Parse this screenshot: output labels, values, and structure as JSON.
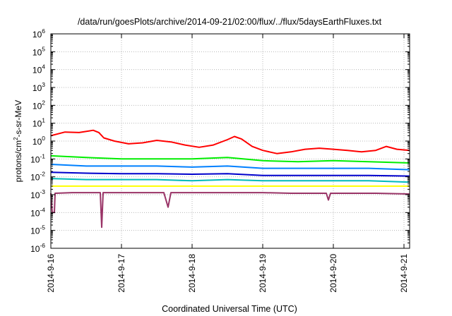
{
  "chart_data": {
    "type": "line",
    "title": "/data/run/goesPlots/archive/2014-09-21/02:00/flux/../flux/5daysEarthFluxes.txt",
    "xlabel": "Coordinated Universal Time (UTC)",
    "ylabel": {
      "pre": "protons/cm",
      "sup": "2",
      "post": "-s-sr-MeV"
    },
    "yscale": "log",
    "ylim": [
      1e-06,
      1000000.0
    ],
    "xlim": [
      "2014-9-16",
      "2014-9-21 02:00"
    ],
    "grid": true,
    "x_ticks": [
      "2014-9-16",
      "2014-9-17",
      "2014-9-18",
      "2014-9-19",
      "2014-9-20",
      "2014-9-21"
    ],
    "y_ticks": [
      {
        "base": "10",
        "exp": "-6"
      },
      {
        "base": "10",
        "exp": "-5"
      },
      {
        "base": "10",
        "exp": "-4"
      },
      {
        "base": "10",
        "exp": "-3"
      },
      {
        "base": "10",
        "exp": "-2"
      },
      {
        "base": "10",
        "exp": "-1"
      },
      {
        "base": "10",
        "exp": "0"
      },
      {
        "base": "10",
        "exp": "1"
      },
      {
        "base": "10",
        "exp": "2"
      },
      {
        "base": "10",
        "exp": "3"
      },
      {
        "base": "10",
        "exp": "4"
      },
      {
        "base": "10",
        "exp": "5"
      },
      {
        "base": "10",
        "exp": "6"
      }
    ],
    "series": [
      {
        "color": "#ff0000",
        "x": [
          0,
          0.2,
          0.4,
          0.6,
          0.68,
          0.75,
          0.9,
          1.1,
          1.3,
          1.5,
          1.7,
          1.9,
          2.1,
          2.3,
          2.5,
          2.6,
          2.7,
          2.85,
          3.0,
          3.2,
          3.4,
          3.6,
          3.8,
          4.0,
          4.2,
          4.4,
          4.6,
          4.75,
          4.9,
          5.08
        ],
        "y": [
          2.0,
          3.2,
          3.0,
          4.0,
          3.0,
          1.5,
          1.0,
          0.7,
          0.8,
          1.1,
          0.9,
          0.6,
          0.45,
          0.6,
          1.2,
          1.8,
          1.3,
          0.5,
          0.3,
          0.2,
          0.25,
          0.35,
          0.4,
          0.35,
          0.3,
          0.25,
          0.3,
          0.5,
          0.35,
          0.3
        ]
      },
      {
        "color": "#00ee00",
        "x": [
          0,
          0.5,
          1.0,
          1.5,
          2.0,
          2.5,
          3.0,
          3.5,
          4.0,
          4.5,
          5.08
        ],
        "y": [
          0.15,
          0.12,
          0.1,
          0.1,
          0.1,
          0.12,
          0.08,
          0.07,
          0.08,
          0.07,
          0.06
        ]
      },
      {
        "color": "#0080ff",
        "x": [
          0,
          0.5,
          1.0,
          1.5,
          2.0,
          2.5,
          3.0,
          3.5,
          4.0,
          4.5,
          5.08
        ],
        "y": [
          0.05,
          0.04,
          0.04,
          0.04,
          0.035,
          0.04,
          0.03,
          0.03,
          0.03,
          0.03,
          0.025
        ]
      },
      {
        "color": "#0000cc",
        "x": [
          0,
          0.5,
          1.0,
          1.5,
          2.0,
          2.5,
          3.0,
          3.5,
          4.0,
          4.5,
          5.08
        ],
        "y": [
          0.018,
          0.016,
          0.015,
          0.015,
          0.014,
          0.015,
          0.012,
          0.012,
          0.012,
          0.012,
          0.011
        ]
      },
      {
        "color": "#00bbbb",
        "x": [
          0,
          0.5,
          1.0,
          1.5,
          2.0,
          2.5,
          3.0,
          3.5,
          4.0,
          4.5,
          5.08
        ],
        "y": [
          0.008,
          0.007,
          0.007,
          0.007,
          0.006,
          0.007,
          0.006,
          0.006,
          0.006,
          0.006,
          0.005
        ]
      },
      {
        "color": "#ffff00",
        "x": [
          0,
          0.5,
          1.0,
          1.5,
          2.0,
          2.5,
          3.0,
          3.5,
          4.0,
          4.5,
          5.08
        ],
        "y": [
          0.003,
          0.003,
          0.003,
          0.003,
          0.003,
          0.003,
          0.003,
          0.003,
          0.003,
          0.003,
          0.003
        ]
      },
      {
        "color": "#993366",
        "x": [
          0,
          0.02,
          0.05,
          0.06,
          0.3,
          0.6,
          0.7,
          0.72,
          0.74,
          0.8,
          1.2,
          1.6,
          1.66,
          1.7,
          1.8,
          2.2,
          2.6,
          3.0,
          3.4,
          3.9,
          3.93,
          3.96,
          4.3,
          4.6,
          5.08
        ],
        "y": [
          0.0012,
          0.0001,
          0.0001,
          0.0012,
          0.0013,
          0.0013,
          0.0013,
          1.5e-05,
          0.0013,
          0.0013,
          0.0013,
          0.0013,
          0.0002,
          0.0013,
          0.0013,
          0.0013,
          0.0013,
          0.0013,
          0.0012,
          0.0012,
          0.0005,
          0.0012,
          0.0012,
          0.0012,
          0.0011
        ]
      }
    ]
  }
}
